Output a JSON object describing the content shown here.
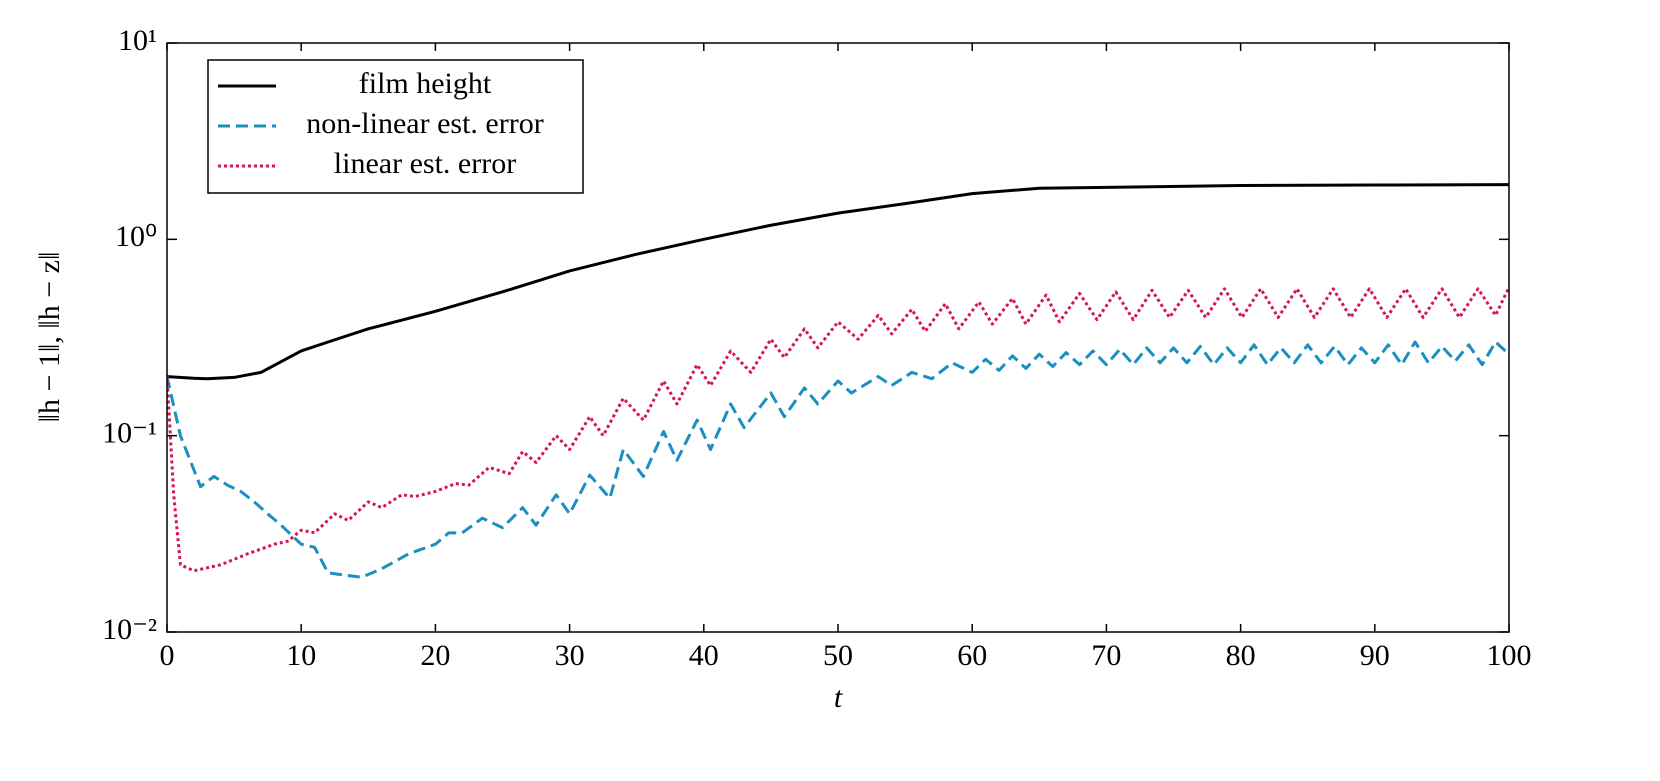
{
  "chart_data": {
    "type": "line",
    "xlabel": "t",
    "ylabel": "‖h − 1‖, ‖h − z‖",
    "xlim": [
      0,
      100
    ],
    "xticks": [
      0,
      10,
      20,
      30,
      40,
      50,
      60,
      70,
      80,
      90,
      100
    ],
    "ylim": [
      0.01,
      10
    ],
    "yscale": "log",
    "yticks": [
      {
        "value": 0.01,
        "label": "10⁻²"
      },
      {
        "value": 0.1,
        "label": "10⁻¹"
      },
      {
        "value": 1,
        "label": "10⁰"
      },
      {
        "value": 10,
        "label": "10¹"
      }
    ],
    "legend": "upper left",
    "series": [
      {
        "name": "film height",
        "color": "#000000",
        "dash": "solid",
        "x": [
          0,
          2,
          3,
          5,
          7,
          10,
          12,
          15,
          20,
          25,
          30,
          35,
          40,
          45,
          50,
          55,
          60,
          65,
          70,
          80,
          90,
          100
        ],
        "values": [
          0.2,
          0.196,
          0.195,
          0.198,
          0.21,
          0.27,
          0.3,
          0.35,
          0.43,
          0.54,
          0.69,
          0.84,
          1.0,
          1.18,
          1.36,
          1.52,
          1.71,
          1.82,
          1.84,
          1.88,
          1.89,
          1.9
        ]
      },
      {
        "name": "non-linear est. error",
        "color": "#1a8fc0",
        "dash": "dashed",
        "x": [
          0,
          1,
          2.5,
          3.5,
          4.5,
          5.5,
          6.5,
          7.5,
          8.5,
          10,
          11,
          12,
          14.5,
          16,
          18,
          20,
          21,
          22,
          23.5,
          25,
          26.5,
          27.5,
          29,
          30,
          31.5,
          33,
          34,
          35.5,
          37,
          38,
          39.5,
          40.5,
          42,
          43,
          45,
          46,
          47.5,
          48.5,
          50,
          51,
          53,
          54,
          55.5,
          57,
          58.5,
          60,
          61,
          62,
          63,
          64,
          65,
          66,
          67,
          68,
          69,
          70,
          71,
          72,
          73,
          74,
          75,
          76,
          77,
          78,
          79,
          80,
          81,
          82,
          83,
          84,
          85,
          86,
          87,
          88,
          89,
          90,
          91,
          92,
          93,
          94,
          95,
          96,
          97,
          98,
          99,
          100
        ],
        "values": [
          0.2,
          0.1,
          0.055,
          0.062,
          0.056,
          0.052,
          0.046,
          0.04,
          0.035,
          0.028,
          0.027,
          0.02,
          0.019,
          0.021,
          0.025,
          0.028,
          0.032,
          0.032,
          0.038,
          0.034,
          0.043,
          0.035,
          0.05,
          0.04,
          0.063,
          0.048,
          0.085,
          0.062,
          0.105,
          0.075,
          0.12,
          0.085,
          0.145,
          0.11,
          0.165,
          0.125,
          0.175,
          0.145,
          0.19,
          0.165,
          0.2,
          0.18,
          0.21,
          0.195,
          0.235,
          0.21,
          0.245,
          0.215,
          0.255,
          0.22,
          0.26,
          0.225,
          0.265,
          0.23,
          0.27,
          0.23,
          0.275,
          0.23,
          0.28,
          0.235,
          0.28,
          0.235,
          0.285,
          0.23,
          0.28,
          0.235,
          0.29,
          0.23,
          0.28,
          0.235,
          0.29,
          0.235,
          0.285,
          0.23,
          0.28,
          0.235,
          0.29,
          0.23,
          0.3,
          0.235,
          0.285,
          0.24,
          0.29,
          0.23,
          0.3,
          0.26
        ]
      },
      {
        "name": "linear est. error",
        "color": "#d6174b",
        "dash": "dotted",
        "x": [
          0,
          0.5,
          1,
          2,
          4,
          6,
          8,
          9,
          10,
          11,
          12.5,
          13.5,
          15,
          16,
          17.5,
          18.5,
          20,
          21.5,
          22.5,
          24,
          25.5,
          26.5,
          27.5,
          29,
          30,
          31.5,
          32.5,
          34,
          35.5,
          37,
          38,
          39.5,
          40.5,
          42,
          43.5,
          45,
          46,
          47.5,
          48.5,
          50,
          51.5,
          53,
          54,
          55.5,
          56.5,
          58,
          59,
          60.5,
          61.5,
          63,
          64,
          65.5,
          66.5,
          68,
          69.3,
          70.7,
          72,
          73.4,
          74.7,
          76.1,
          77.4,
          78.8,
          80.1,
          81.5,
          82.8,
          84.2,
          85.5,
          86.9,
          88.2,
          89.6,
          90.9,
          92.3,
          93.6,
          95,
          96.3,
          97.7,
          99,
          100
        ],
        "values": [
          0.2,
          0.05,
          0.022,
          0.0205,
          0.022,
          0.025,
          0.028,
          0.029,
          0.033,
          0.032,
          0.04,
          0.037,
          0.046,
          0.043,
          0.05,
          0.049,
          0.052,
          0.057,
          0.056,
          0.069,
          0.064,
          0.083,
          0.073,
          0.1,
          0.085,
          0.125,
          0.1,
          0.155,
          0.12,
          0.19,
          0.145,
          0.23,
          0.18,
          0.27,
          0.21,
          0.31,
          0.25,
          0.35,
          0.28,
          0.38,
          0.31,
          0.41,
          0.33,
          0.44,
          0.34,
          0.47,
          0.35,
          0.48,
          0.37,
          0.5,
          0.37,
          0.52,
          0.38,
          0.53,
          0.39,
          0.54,
          0.39,
          0.55,
          0.4,
          0.55,
          0.4,
          0.56,
          0.4,
          0.56,
          0.4,
          0.56,
          0.4,
          0.56,
          0.4,
          0.56,
          0.4,
          0.56,
          0.4,
          0.56,
          0.4,
          0.56,
          0.41,
          0.57
        ]
      }
    ]
  }
}
